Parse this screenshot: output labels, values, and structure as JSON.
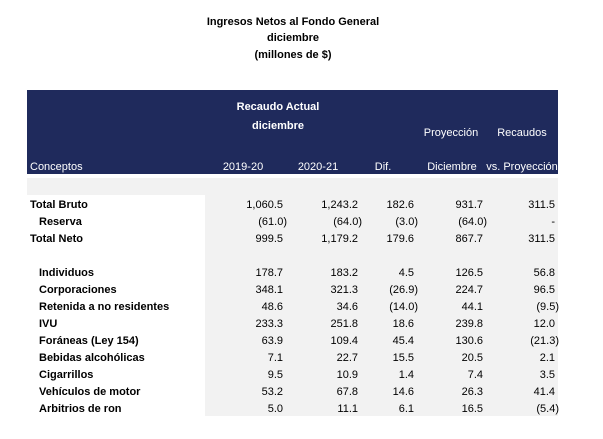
{
  "header": {
    "title": "Ingresos Netos al Fondo General",
    "subtitle": "diciembre",
    "units": "(millones de $)"
  },
  "table": {
    "group_header": [
      "Recaudo Actual",
      "diciembre"
    ],
    "projection_header": "Proyección",
    "receipts_header": "Recaudos",
    "columns": [
      "Conceptos",
      "2019-20",
      "2020-21",
      "Dif.",
      "Diciembre",
      "vs. Proyección"
    ],
    "rows": [
      [
        "Total Bruto",
        "1,060.5",
        "1,243.2",
        "182.6",
        "931.7",
        "311.5"
      ],
      [
        "Reserva",
        "(61.0)",
        "(64.0)",
        "(3.0)",
        "(64.0)",
        "-"
      ],
      [
        "Total Neto",
        "999.5",
        "1,179.2",
        "179.6",
        "867.7",
        "311.5"
      ],
      [
        "Individuos",
        "178.7",
        "183.2",
        "4.5",
        "126.5",
        "56.8"
      ],
      [
        "Corporaciones",
        "348.1",
        "321.3",
        "(26.9)",
        "224.7",
        "96.5"
      ],
      [
        "Retenida a no residentes",
        "48.6",
        "34.6",
        "(14.0)",
        "44.1",
        "(9.5)"
      ],
      [
        "IVU",
        "233.3",
        "251.8",
        "18.6",
        "239.8",
        "12.0"
      ],
      [
        "Foráneas (Ley 154)",
        "63.9",
        "109.4",
        "45.4",
        "130.6",
        "(21.3)"
      ],
      [
        "Bebidas alcohólicas",
        "7.1",
        "22.7",
        "15.5",
        "20.5",
        "2.1"
      ],
      [
        "Cigarrillos",
        "9.5",
        "10.9",
        "1.4",
        "7.4",
        "3.5"
      ],
      [
        "Vehículos de motor",
        "53.2",
        "67.8",
        "14.6",
        "26.3",
        "41.4"
      ],
      [
        "Arbitrios de ron",
        "5.0",
        "11.1",
        "6.1",
        "16.5",
        "(5.4)"
      ]
    ]
  }
}
